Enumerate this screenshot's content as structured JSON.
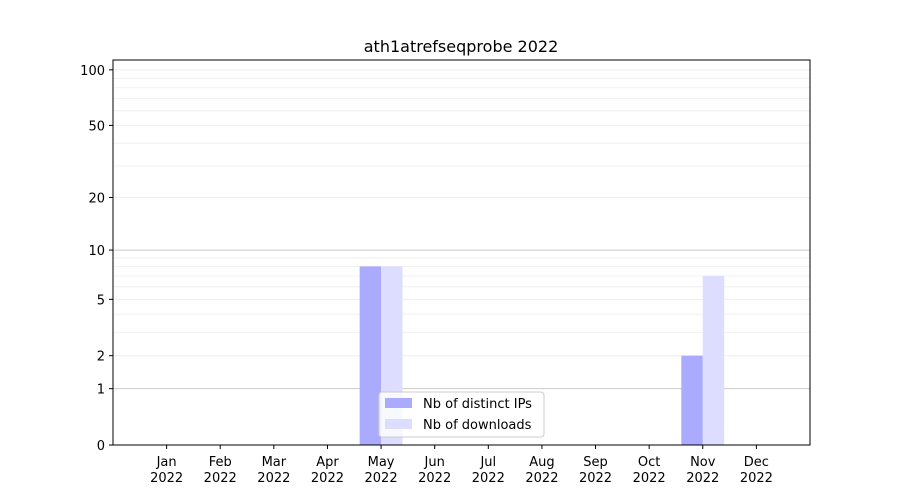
{
  "chart_data": {
    "type": "bar",
    "title": "ath1atrefseqprobe 2022",
    "xlabel": "",
    "ylabel": "",
    "y_scale": "log(1+y)",
    "ylim": [
      0,
      113
    ],
    "grid": true,
    "legend_placement": "lower-center",
    "categories": [
      "Jan\n2022",
      "Feb\n2022",
      "Mar\n2022",
      "Apr\n2022",
      "May\n2022",
      "Jun\n2022",
      "Jul\n2022",
      "Aug\n2022",
      "Sep\n2022",
      "Oct\n2022",
      "Nov\n2022",
      "Dec\n2022"
    ],
    "yticks": [
      0,
      1,
      2,
      5,
      10,
      20,
      50,
      100
    ],
    "series": [
      {
        "name": "Nb of distinct IPs",
        "color": "#aaaaff",
        "values": [
          0,
          0,
          0,
          0,
          8,
          0,
          0,
          0,
          0,
          0,
          2,
          0
        ]
      },
      {
        "name": "Nb of downloads",
        "color": "#ddddff",
        "values": [
          0,
          0,
          0,
          0,
          8,
          0,
          0,
          0,
          0,
          0,
          7,
          0
        ]
      }
    ]
  }
}
